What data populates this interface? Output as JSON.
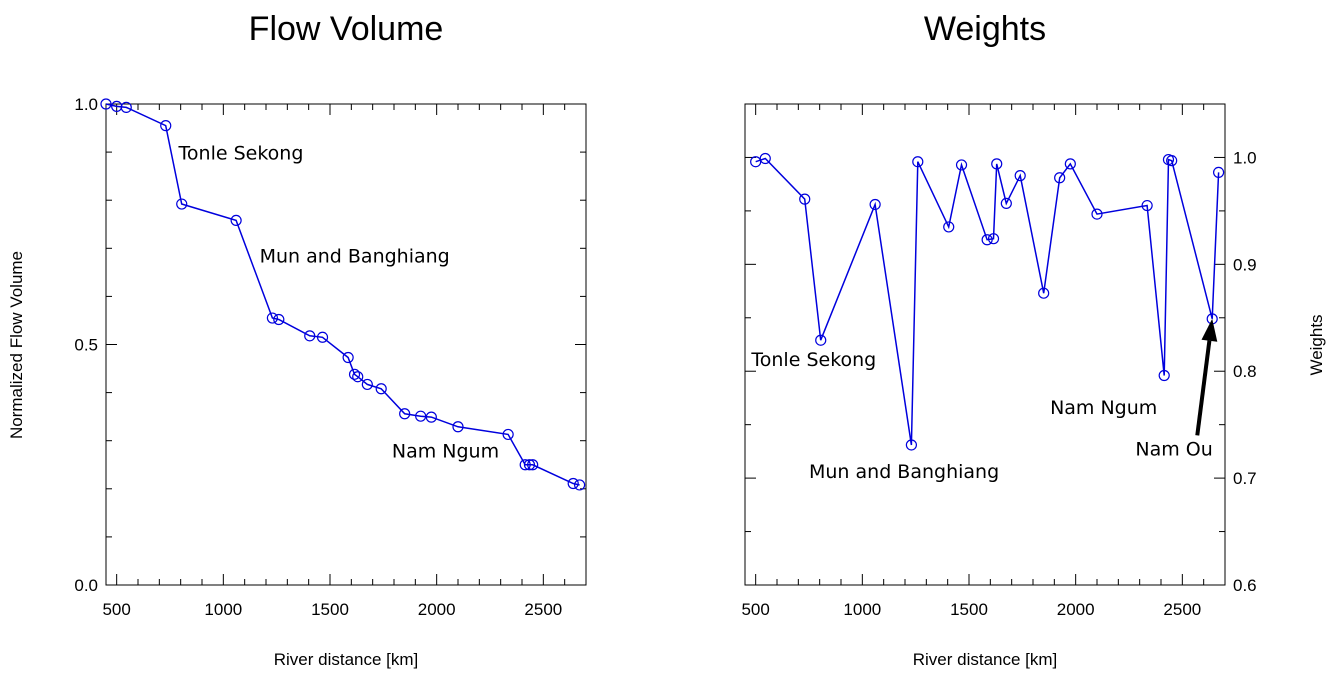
{
  "chart_data": [
    {
      "type": "line",
      "title": "Flow Volume",
      "xlabel": "River distance [km]",
      "ylabel": "Normalized Flow Volume",
      "xlim": [
        450,
        2700
      ],
      "ylim": [
        0.0,
        1.0
      ],
      "xticks": [
        500,
        1000,
        1500,
        2000,
        2500
      ],
      "xtick_labels": [
        "500",
        "1000",
        "1500",
        "2000",
        "2500"
      ],
      "yticks": [
        0.0,
        0.5,
        1.0
      ],
      "ytick_labels": [
        "0.0",
        "0.5",
        "1.0"
      ],
      "y_axis_side": "left",
      "grid": false,
      "series": [
        {
          "color": "#0000dd",
          "marker": "open-circle",
          "x": [
            450,
            500,
            545,
            730,
            805,
            1060,
            1230,
            1260,
            1405,
            1465,
            1585,
            1615,
            1630,
            1675,
            1740,
            1850,
            1925,
            1975,
            2100,
            2335,
            2415,
            2435,
            2450,
            2640,
            2670
          ],
          "y": [
            1.0,
            0.995,
            0.993,
            0.955,
            0.792,
            0.758,
            0.555,
            0.552,
            0.518,
            0.515,
            0.473,
            0.438,
            0.433,
            0.417,
            0.408,
            0.356,
            0.351,
            0.349,
            0.329,
            0.313,
            0.25,
            0.25,
            0.25,
            0.211,
            0.208
          ]
        }
      ],
      "annotations": [
        {
          "text": "Tonle Sekong",
          "x": 790,
          "y": 0.885
        },
        {
          "text": "Mun and Banghiang",
          "x": 1170,
          "y": 0.67
        },
        {
          "text": "Nam Ngum",
          "x": 1790,
          "y": 0.265
        }
      ]
    },
    {
      "type": "line",
      "title": "Weights",
      "xlabel": "River distance [km]",
      "ylabel": "Weights",
      "xlim": [
        450,
        2700
      ],
      "ylim": [
        0.6,
        1.05
      ],
      "xticks": [
        500,
        1000,
        1500,
        2000,
        2500
      ],
      "xtick_labels": [
        "500",
        "1000",
        "1500",
        "2000",
        "2500"
      ],
      "yticks": [
        0.6,
        0.7,
        0.8,
        0.9,
        1.0
      ],
      "ytick_labels": [
        "0.6",
        "0.7",
        "0.8",
        "0.9",
        "1.0"
      ],
      "y_axis_side": "right",
      "grid": false,
      "series": [
        {
          "color": "#0000dd",
          "marker": "open-circle",
          "x": [
            500,
            545,
            730,
            805,
            1060,
            1230,
            1260,
            1405,
            1465,
            1585,
            1615,
            1630,
            1675,
            1740,
            1850,
            1925,
            1975,
            2100,
            2335,
            2415,
            2435,
            2450,
            2640,
            2670
          ],
          "y": [
            0.996,
            0.999,
            0.961,
            0.829,
            0.956,
            0.731,
            0.996,
            0.935,
            0.993,
            0.923,
            0.924,
            0.994,
            0.957,
            0.983,
            0.873,
            0.981,
            0.994,
            0.947,
            0.955,
            0.796,
            0.998,
            0.997,
            0.849,
            0.986
          ]
        }
      ],
      "annotations": [
        {
          "text": "Tonle Sekong",
          "x": 480,
          "y": 0.805
        },
        {
          "text": "Mun and Banghiang",
          "x": 750,
          "y": 0.7
        },
        {
          "text": "Nam Ngum",
          "x": 1880,
          "y": 0.76
        },
        {
          "text": "Nam Ou",
          "x": 2280,
          "y": 0.721
        }
      ],
      "arrow": {
        "from": [
          2570,
          0.74
        ],
        "to": [
          2640,
          0.849
        ]
      }
    }
  ]
}
